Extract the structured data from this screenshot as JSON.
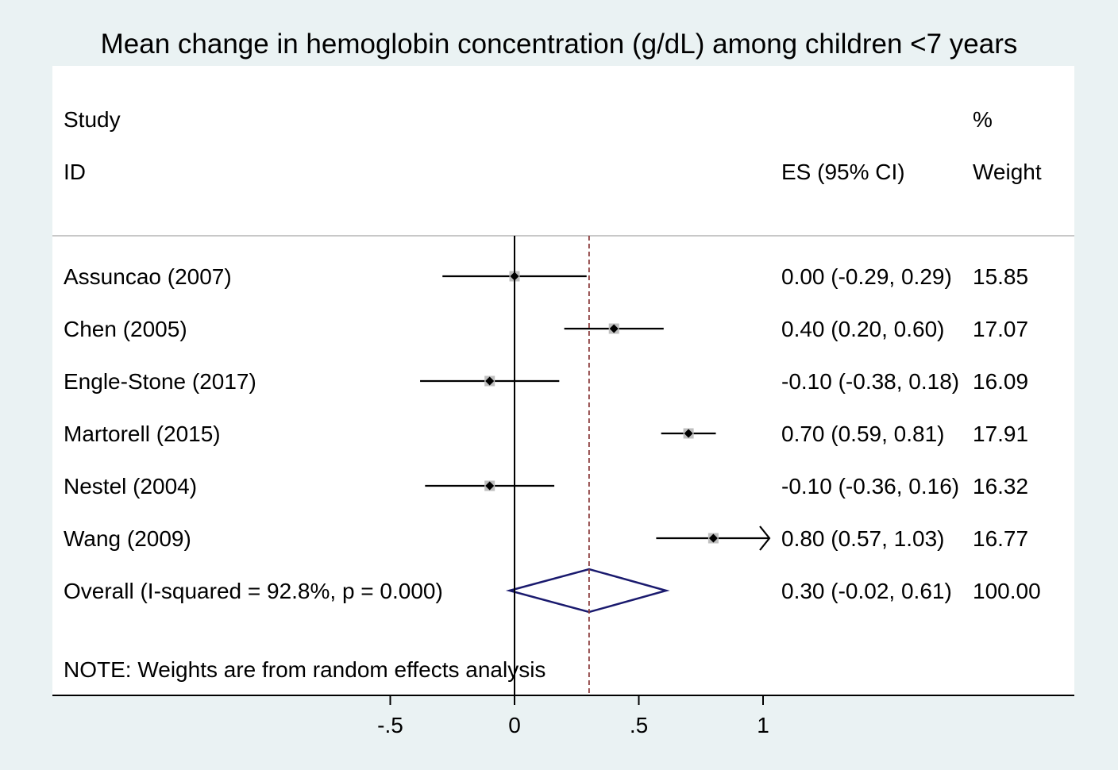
{
  "title": "Mean change in hemoglobin concentration (g/dL) among children <7 years",
  "chart_data": {
    "type": "forest",
    "header": {
      "study_line1": "Study",
      "study_line2": "ID",
      "es_label": "ES (95% CI)",
      "weight_line1": "%",
      "weight_line2": "Weight"
    },
    "studies": [
      {
        "label": "Assuncao (2007)",
        "es": 0.0,
        "lo": -0.29,
        "hi": 0.29,
        "es_text": "0.00 (-0.29, 0.29)",
        "weight": "15.85"
      },
      {
        "label": "Chen (2005)",
        "es": 0.4,
        "lo": 0.2,
        "hi": 0.6,
        "es_text": "0.40 (0.20, 0.60)",
        "weight": "17.07"
      },
      {
        "label": "Engle-Stone (2017)",
        "es": -0.1,
        "lo": -0.38,
        "hi": 0.18,
        "es_text": "-0.10 (-0.38, 0.18)",
        "weight": "16.09"
      },
      {
        "label": "Martorell (2015)",
        "es": 0.7,
        "lo": 0.59,
        "hi": 0.81,
        "es_text": "0.70 (0.59, 0.81)",
        "weight": "17.91"
      },
      {
        "label": "Nestel (2004)",
        "es": -0.1,
        "lo": -0.36,
        "hi": 0.16,
        "es_text": "-0.10 (-0.36, 0.16)",
        "weight": "16.32"
      },
      {
        "label": "Wang (2009)",
        "es": 0.8,
        "lo": 0.57,
        "hi": 1.03,
        "es_text": "0.80 (0.57, 1.03)",
        "weight": "16.77",
        "clipped_hi": true
      }
    ],
    "overall": {
      "label": "Overall  (I-squared = 92.8%, p = 0.000)",
      "es": 0.3,
      "lo": -0.02,
      "hi": 0.61,
      "es_text": "0.30 (-0.02, 0.61)",
      "weight": "100.00"
    },
    "note": "NOTE: Weights are from random effects analysis",
    "x_ticks": [
      {
        "value": -0.5,
        "label": "-.5"
      },
      {
        "value": 0,
        "label": "0"
      },
      {
        "value": 0.5,
        "label": ".5"
      },
      {
        "value": 1,
        "label": "1"
      }
    ],
    "xlim": [
      -0.5,
      1
    ],
    "null_line": 0,
    "colors": {
      "background": "#eaf2f3",
      "plot": "#ffffff",
      "ci_line": "#000000",
      "weight_box": "#bfbfbf",
      "diamond": "#1a1a6e",
      "overall_line": "#8b3a3a"
    }
  }
}
